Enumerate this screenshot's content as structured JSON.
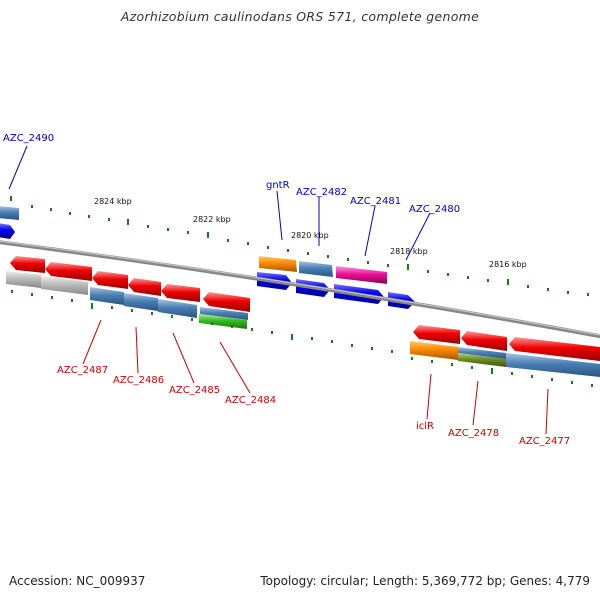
{
  "title": "Azorhizobium caulinodans ORS 571, complete genome",
  "footer": {
    "accession": "Accession: NC_009937",
    "topology": "Topology: circular; Length: 5,369,772 bp; Genes: 4,779"
  },
  "colors": {
    "forward_cds": "#0000ee",
    "reverse_cds": "#ee0000",
    "cog_blue": "#4a7fb5",
    "cog_orange": "#ff8800",
    "cog_pink": "#ee1199",
    "cog_green": "#33bb22",
    "cog_olive": "#6b8e23",
    "cog_grey": "#bbbbbb",
    "backbone": "#888888",
    "tick": "#1a7a1a"
  },
  "ticks": [
    {
      "label": "2824 kbp"
    },
    {
      "label": "2822 kbp"
    },
    {
      "label": "2820 kbp"
    },
    {
      "label": "2818 kbp"
    },
    {
      "label": "2816 kbp"
    }
  ],
  "forward_labels": [
    {
      "text": "AZC_2490"
    },
    {
      "text": "gntR"
    },
    {
      "text": "AZC_2482"
    },
    {
      "text": "AZC_2481"
    },
    {
      "text": "AZC_2480"
    }
  ],
  "reverse_labels": [
    {
      "text": "AZC_2487"
    },
    {
      "text": "AZC_2486"
    },
    {
      "text": "AZC_2485"
    },
    {
      "text": "AZC_2484"
    },
    {
      "text": "iclR"
    },
    {
      "text": "AZC_2478"
    },
    {
      "text": "AZC_2477"
    }
  ]
}
